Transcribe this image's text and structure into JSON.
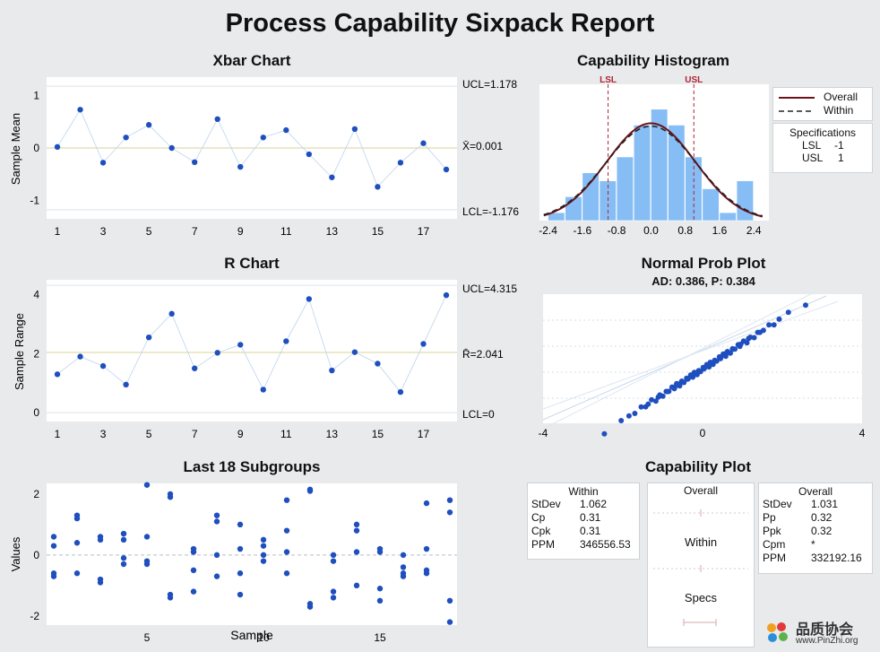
{
  "report": {
    "title": "Process Capability Sixpack Report"
  },
  "xbar": {
    "title": "Xbar Chart",
    "ylabel": "Sample Mean",
    "ucl_label": "UCL=1.178",
    "center_label": "X̄=0.001",
    "lcl_label": "LCL=-1.176",
    "ucl": 1.178,
    "center": 0.001,
    "lcl": -1.176
  },
  "rchart": {
    "title": "R Chart",
    "ylabel": "Sample Range",
    "ucl_label": "UCL=4.315",
    "center_label": "R̄=2.041",
    "lcl_label": "LCL=0",
    "ucl": 4.315,
    "center": 2.041,
    "lcl": 0
  },
  "last": {
    "title": "Last 18 Subgroups",
    "xlabel": "Sample",
    "ylabel": "Values"
  },
  "hist": {
    "title": "Capability Histogram",
    "lsl_tag": "LSL",
    "usl_tag": "USL",
    "legend": {
      "overall": "Overall",
      "within": "Within"
    },
    "specs": {
      "title": "Specifications",
      "lsl_label": "LSL",
      "lsl_value": "-1",
      "usl_label": "USL",
      "usl_value": "1"
    }
  },
  "normprob": {
    "title": "Normal Prob Plot",
    "subtitle": "AD: 0.386, P: 0.384"
  },
  "capplot": {
    "title": "Capability Plot",
    "within": {
      "heading": "Within",
      "rows": [
        [
          "StDev",
          "1.062"
        ],
        [
          "Cp",
          "0.31"
        ],
        [
          "Cpk",
          "0.31"
        ],
        [
          "PPM",
          "346556.53"
        ]
      ]
    },
    "overall": {
      "heading": "Overall",
      "rows": [
        [
          "StDev",
          "1.031"
        ],
        [
          "Pp",
          "0.32"
        ],
        [
          "Ppk",
          "0.32"
        ],
        [
          "Cpm",
          "*"
        ],
        [
          "PPM",
          "332192.16"
        ]
      ]
    },
    "bands": [
      "Overall",
      "Within",
      "Specs"
    ]
  },
  "watermark": {
    "name": "品质协会",
    "url": "www.PinZhi.org"
  },
  "colors": {
    "point": "#1f4fbf",
    "bar": "#87bdf5",
    "overall": "#6b1118",
    "within": "#222222",
    "spec": "#b22234",
    "centerline": "#d8d39a"
  },
  "chart_data": [
    {
      "type": "scatter",
      "title": "Xbar Chart",
      "ylabel": "Sample Mean",
      "x": [
        1,
        2,
        3,
        4,
        5,
        6,
        7,
        8,
        9,
        10,
        11,
        12,
        13,
        14,
        15,
        16,
        17,
        18
      ],
      "y": [
        0.02,
        0.73,
        -0.28,
        0.2,
        0.44,
        0.0,
        -0.27,
        0.55,
        -0.36,
        0.2,
        0.34,
        -0.12,
        -0.56,
        0.36,
        -0.74,
        -0.28,
        0.09,
        -0.41
      ],
      "xticks": [
        1,
        3,
        5,
        7,
        9,
        11,
        13,
        15,
        17
      ],
      "yticks": [
        -1,
        0,
        1
      ],
      "ylim": [
        -1.35,
        1.35
      ],
      "ucl": 1.178,
      "center": 0.001,
      "lcl": -1.176
    },
    {
      "type": "scatter",
      "title": "R Chart",
      "ylabel": "Sample Range",
      "x": [
        1,
        2,
        3,
        4,
        5,
        6,
        7,
        8,
        9,
        10,
        11,
        12,
        13,
        14,
        15,
        16,
        17,
        18
      ],
      "y": [
        1.3,
        1.9,
        1.58,
        0.95,
        2.55,
        3.35,
        1.5,
        2.03,
        2.3,
        0.78,
        2.42,
        3.85,
        1.43,
        2.05,
        1.66,
        0.7,
        2.33,
        3.98
      ],
      "xticks": [
        1,
        3,
        5,
        7,
        9,
        11,
        13,
        15,
        17
      ],
      "yticks": [
        0,
        2,
        4
      ],
      "ylim": [
        -0.3,
        4.5
      ],
      "ucl": 4.315,
      "center": 2.041,
      "lcl": 0
    },
    {
      "type": "scatter",
      "title": "Last 18 Subgroups",
      "xlabel": "Sample",
      "ylabel": "Values",
      "groups": [
        [
          0.6,
          0.3,
          -0.6,
          -0.7
        ],
        [
          1.3,
          1.2,
          0.4,
          -0.6
        ],
        [
          0.6,
          0.5,
          -0.8,
          -0.9
        ],
        [
          0.7,
          0.5,
          -0.1,
          -0.3
        ],
        [
          2.3,
          0.6,
          -0.2,
          -0.3
        ],
        [
          2.0,
          1.9,
          -1.3,
          -1.4
        ],
        [
          0.2,
          0.1,
          -0.5,
          -1.2
        ],
        [
          1.3,
          1.1,
          0.0,
          -0.7
        ],
        [
          1.0,
          0.2,
          -0.6,
          -1.3
        ],
        [
          0.5,
          0.3,
          0.0,
          -0.2
        ],
        [
          1.8,
          0.8,
          0.1,
          -0.6
        ],
        [
          2.1,
          2.15,
          -1.6,
          -1.7
        ],
        [
          0.0,
          -0.2,
          -1.2,
          -1.4
        ],
        [
          1.0,
          0.8,
          0.1,
          -1.0
        ],
        [
          0.2,
          0.1,
          -1.1,
          -1.5
        ],
        [
          0.0,
          -0.4,
          -0.6,
          -0.7
        ],
        [
          1.7,
          0.2,
          -0.5,
          -0.6
        ],
        [
          1.8,
          1.4,
          -1.5,
          -2.2
        ]
      ],
      "xticks": [
        5,
        10,
        15
      ],
      "yticks": [
        -2,
        0,
        2
      ],
      "ylim": [
        -2.3,
        2.35
      ]
    },
    {
      "type": "bar",
      "title": "Capability Histogram",
      "bins": [
        -2.4,
        -2.0,
        -1.6,
        -1.2,
        -0.8,
        -0.4,
        0.0,
        0.4,
        0.8,
        1.2,
        1.6,
        2.0,
        2.4
      ],
      "counts": [
        1,
        3,
        6,
        5,
        8,
        12,
        14,
        12,
        8,
        4,
        1,
        5
      ],
      "xticks": [
        -2.4,
        -1.6,
        -0.8,
        0.0,
        0.8,
        1.6,
        2.4
      ],
      "xlim": [
        -2.6,
        2.75
      ],
      "lsl": -1,
      "usl": 1,
      "mean": 0.001,
      "stdev_within": 1.062,
      "stdev_overall": 1.031
    },
    {
      "type": "scatter",
      "title": "Normal Prob Plot",
      "subtitle": "AD: 0.386, P: 0.384",
      "xticks": [
        -4,
        0,
        4
      ],
      "xlim": [
        -4,
        4
      ],
      "n_points": 72
    }
  ]
}
